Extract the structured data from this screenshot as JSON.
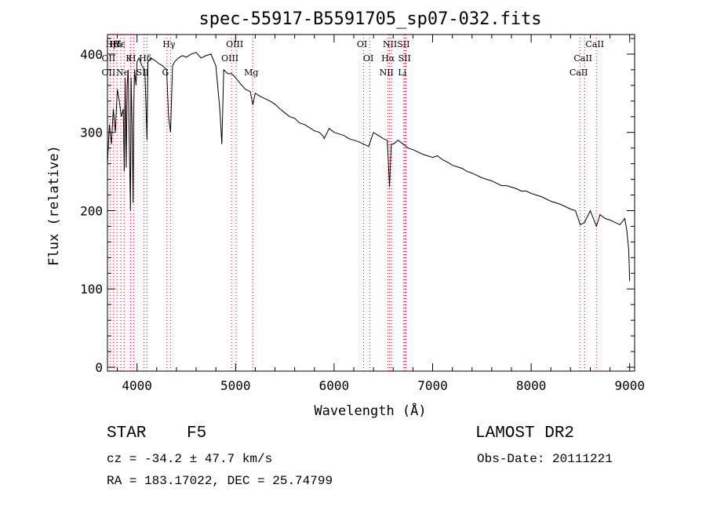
{
  "chart_data": {
    "type": "line",
    "title": "spec-55917-B5591705_sp07-032.fits",
    "xlabel": "Wavelength (Å)",
    "ylabel": "Flux (relative)",
    "xlim": [
      3700,
      9050
    ],
    "ylim": [
      -5,
      425
    ],
    "x_ticks": [
      4000,
      5000,
      6000,
      7000,
      8000,
      9000
    ],
    "y_ticks": [
      0,
      100,
      200,
      300,
      400
    ],
    "grid": false,
    "series": [
      {
        "x": [
          3700,
          3720,
          3740,
          3760,
          3780,
          3800,
          3820,
          3840,
          3860,
          3870,
          3880,
          3890,
          3900,
          3910,
          3920,
          3933,
          3940,
          3950,
          3960,
          3968,
          3975,
          3990,
          4000,
          4020,
          4050,
          4080,
          4101,
          4110,
          4140,
          4180,
          4220,
          4260,
          4300,
          4320,
          4340,
          4360,
          4380,
          4420,
          4460,
          4500,
          4550,
          4600,
          4650,
          4700,
          4750,
          4800,
          4840,
          4861,
          4880,
          4920,
          4960,
          5000,
          5050,
          5100,
          5150,
          5175,
          5200,
          5250,
          5300,
          5350,
          5400,
          5450,
          5500,
          5550,
          5600,
          5650,
          5700,
          5750,
          5800,
          5850,
          5890,
          5900,
          5950,
          6000,
          6050,
          6100,
          6150,
          6200,
          6250,
          6300,
          6350,
          6400,
          6450,
          6500,
          6540,
          6563,
          6580,
          6600,
          6650,
          6700,
          6750,
          6800,
          6850,
          6900,
          6950,
          7000,
          7050,
          7100,
          7150,
          7200,
          7250,
          7300,
          7350,
          7400,
          7450,
          7500,
          7550,
          7600,
          7650,
          7700,
          7750,
          7800,
          7850,
          7900,
          7950,
          8000,
          8050,
          8100,
          8150,
          8200,
          8250,
          8300,
          8350,
          8400,
          8450,
          8498,
          8542,
          8600,
          8662,
          8700,
          8750,
          8800,
          8850,
          8900,
          8950,
          8970,
          8990,
          9000
        ],
        "y": [
          260,
          310,
          285,
          330,
          300,
          355,
          340,
          320,
          330,
          250,
          370,
          255,
          360,
          380,
          300,
          200,
          370,
          310,
          210,
          340,
          380,
          360,
          390,
          395,
          385,
          380,
          290,
          390,
          395,
          392,
          388,
          385,
          380,
          320,
          300,
          385,
          390,
          395,
          398,
          396,
          400,
          402,
          395,
          398,
          400,
          385,
          330,
          285,
          380,
          375,
          375,
          370,
          362,
          355,
          352,
          335,
          350,
          346,
          343,
          340,
          336,
          330,
          325,
          320,
          318,
          312,
          310,
          306,
          302,
          300,
          295,
          292,
          305,
          300,
          298,
          296,
          292,
          290,
          288,
          285,
          282,
          300,
          296,
          292,
          290,
          230,
          285,
          285,
          290,
          285,
          280,
          278,
          275,
          272,
          270,
          268,
          270,
          265,
          262,
          258,
          256,
          254,
          250,
          248,
          245,
          242,
          240,
          238,
          235,
          232,
          232,
          230,
          228,
          225,
          225,
          222,
          220,
          218,
          215,
          212,
          210,
          208,
          205,
          202,
          200,
          182,
          185,
          200,
          180,
          195,
          190,
          188,
          185,
          182,
          190,
          175,
          150,
          110
        ]
      }
    ],
    "lines": {
      "colors": {
        "line_marker": "#d00000",
        "spectrum": "#000000"
      },
      "top_row": [
        {
          "label": "Hβ",
          "x": 3762
        },
        {
          "label": "Hδ",
          "x": 3797
        },
        {
          "label": "Hε",
          "x": 3835
        },
        {
          "label": "Hγ",
          "x": 4340
        },
        {
          "label": "OIII",
          "x": 5007
        },
        {
          "label": "OI",
          "x": 6300
        },
        {
          "label": "NII",
          "x": 6583
        },
        {
          "label": "SII",
          "x": 6720
        },
        {
          "label": "CaII",
          "x": 8662
        }
      ],
      "mid_row": [
        {
          "label": "OII",
          "x": 3727
        },
        {
          "label": "K",
          "x": 3934
        },
        {
          "label": "H",
          "x": 3968
        },
        {
          "label": "Hδ",
          "x": 4101
        },
        {
          "label": "OIII",
          "x": 4959
        },
        {
          "label": "OI",
          "x": 6364
        },
        {
          "label": "Hα",
          "x": 6563
        },
        {
          "label": "SII",
          "x": 6731
        },
        {
          "label": "CaII",
          "x": 8542
        }
      ],
      "low_row": [
        {
          "label": "OII",
          "x": 3727
        },
        {
          "label": "Ne",
          "x": 3869
        },
        {
          "label": "SII",
          "x": 4072
        },
        {
          "label": "G",
          "x": 4304
        },
        {
          "label": "Mg",
          "x": 5175
        },
        {
          "label": "NII",
          "x": 6548
        },
        {
          "label": "Li",
          "x": 6708
        },
        {
          "label": "CaII",
          "x": 8498
        }
      ]
    }
  },
  "info": {
    "class_label": "STAR",
    "subclass": "F5",
    "survey": "LAMOST DR2",
    "cz": "cz = -34.2 ± 47.7 km/s",
    "obs_date": "Obs-Date: 20111221",
    "radec": "RA = 183.17022, DEC =  25.74799"
  }
}
